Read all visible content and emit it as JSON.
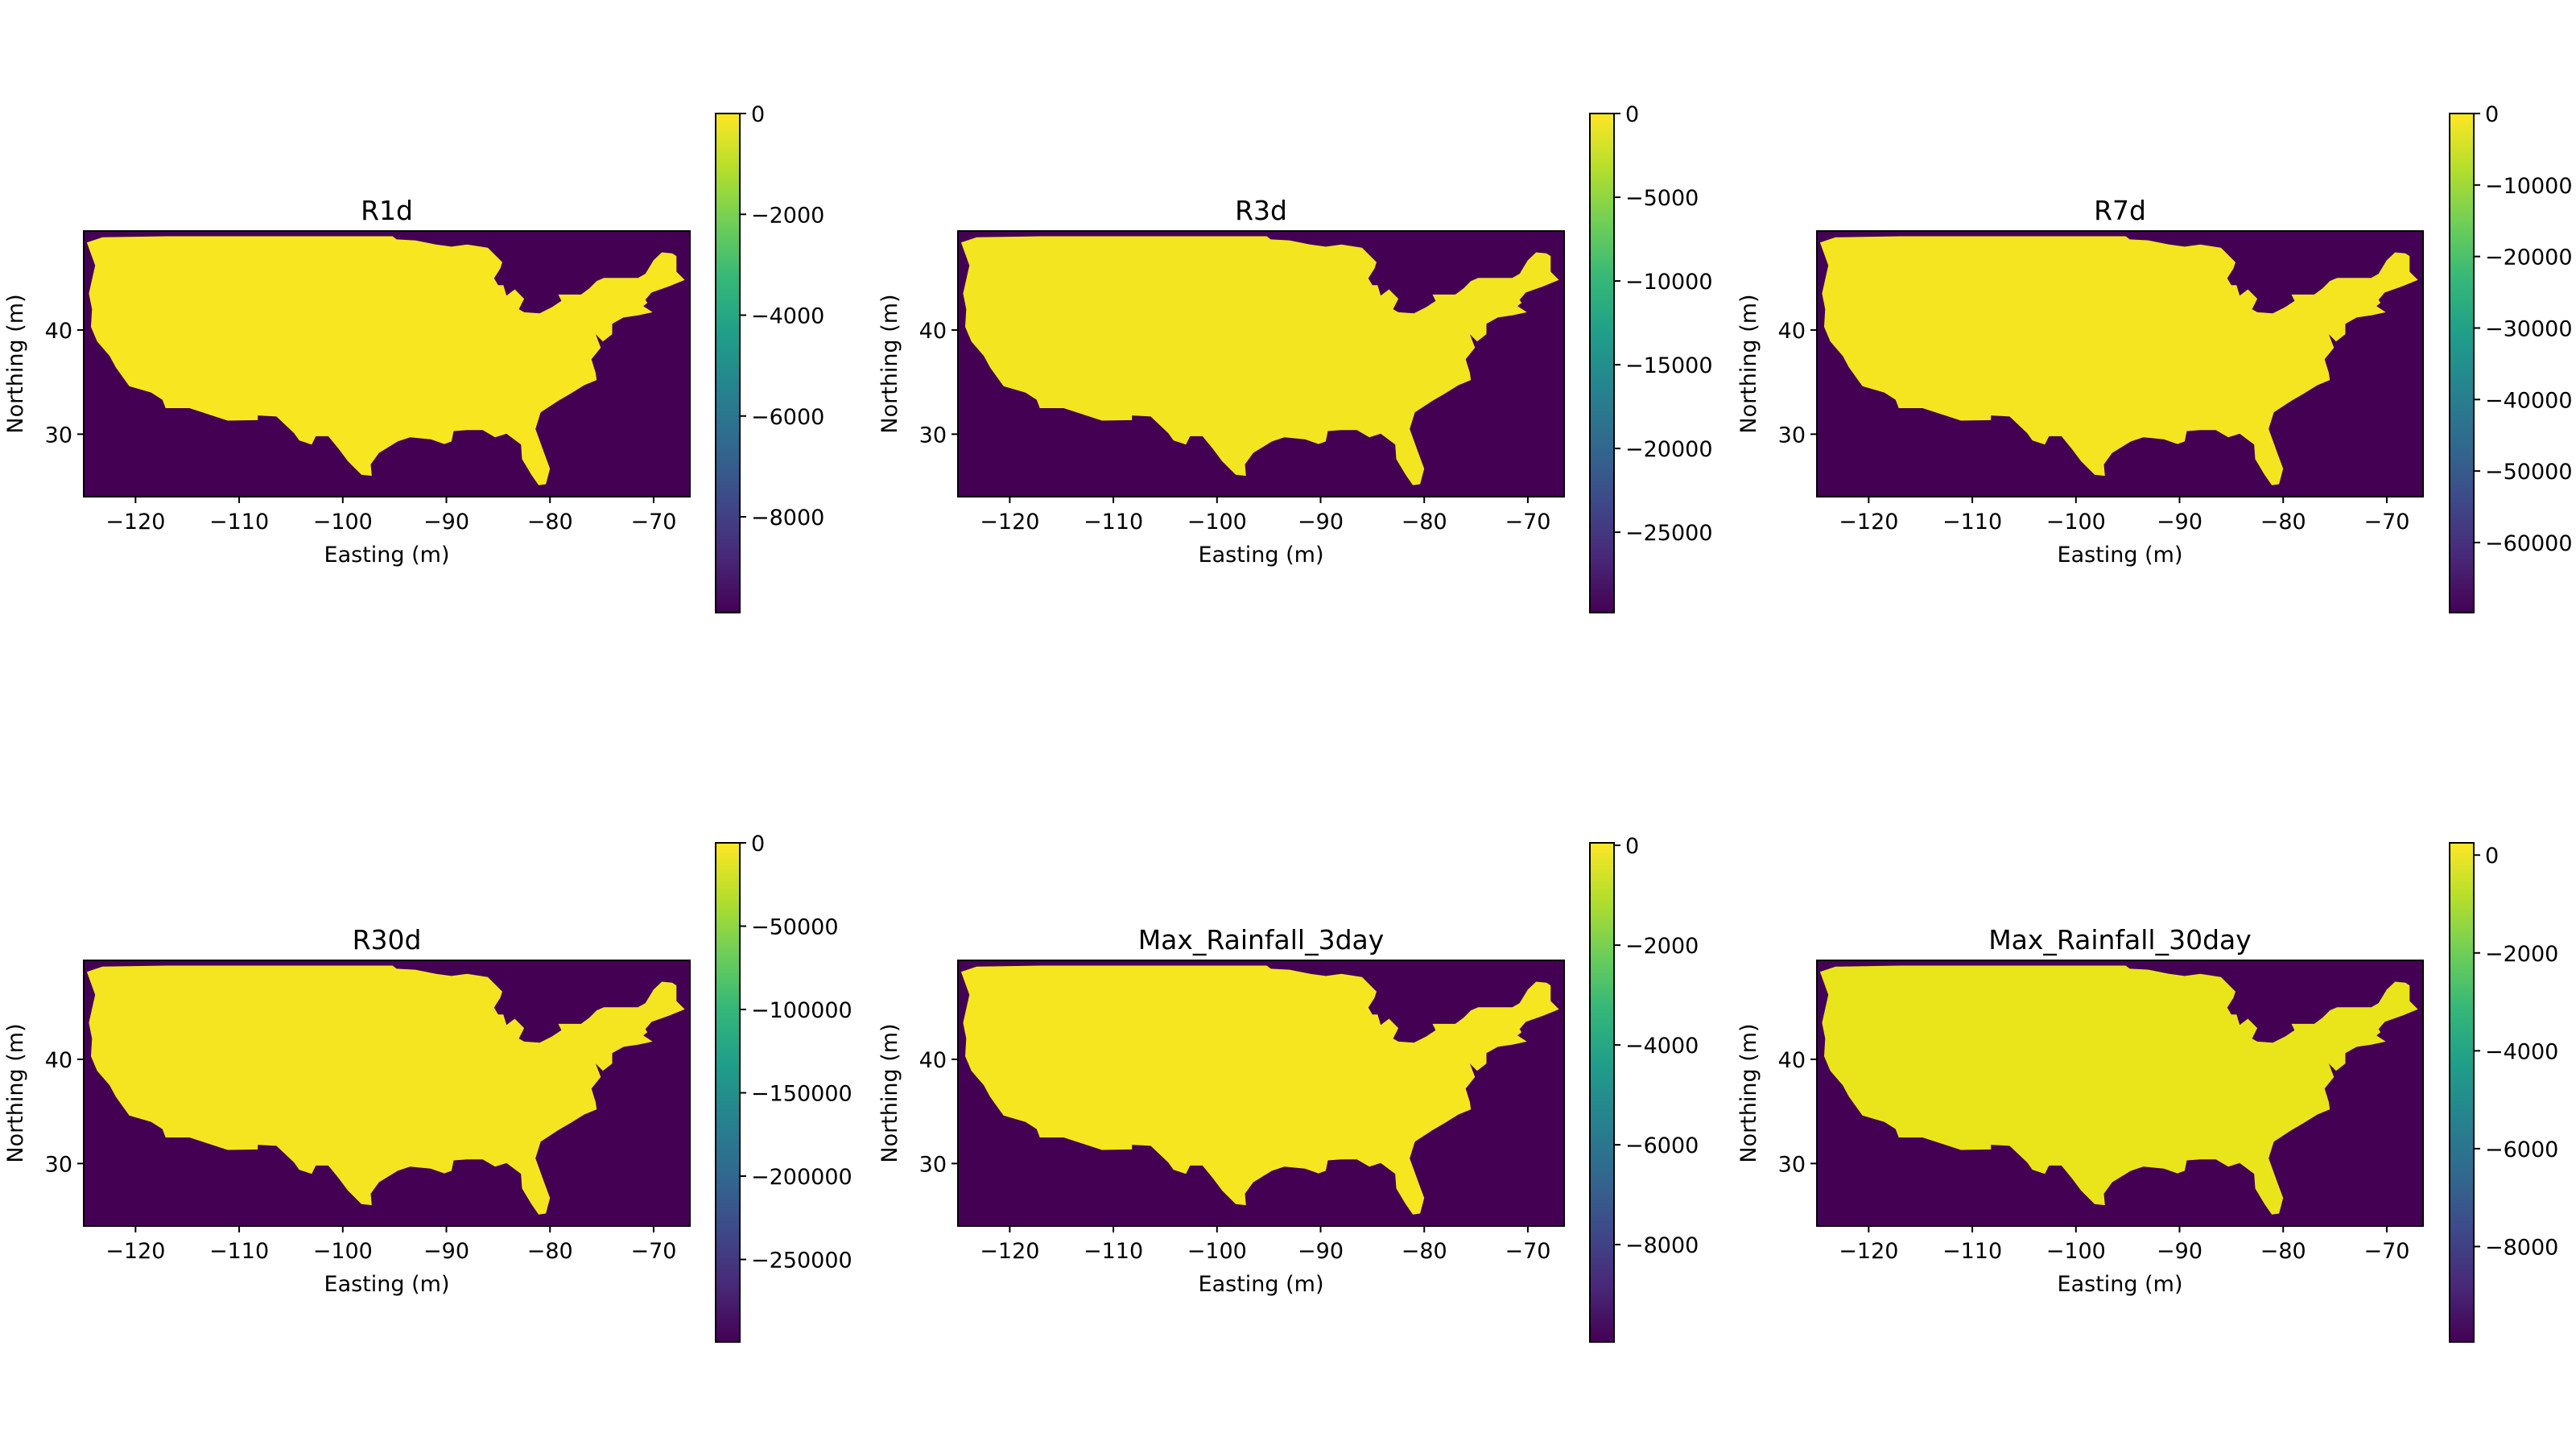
{
  "chart_data": [
    {
      "type": "heatmap",
      "title": "R1d",
      "xlabel": "Easting (m)",
      "ylabel": "Northing (m)",
      "x_ticks": [
        -120,
        -110,
        -100,
        -90,
        -80,
        -70
      ],
      "y_ticks": [
        30,
        40
      ],
      "xlim": [
        -125,
        -66.5
      ],
      "ylim": [
        24,
        49.5
      ],
      "colorbar": {
        "min": -9900,
        "max": 0,
        "ticks": [
          0,
          -2000,
          -4000,
          -6000,
          -8000
        ],
        "tick_labels": [
          "0",
          "−2000",
          "−4000",
          "−6000",
          "−8000"
        ]
      }
    },
    {
      "type": "heatmap",
      "title": "R3d",
      "xlabel": "Easting (m)",
      "ylabel": "Northing (m)",
      "x_ticks": [
        -120,
        -110,
        -100,
        -90,
        -80,
        -70
      ],
      "y_ticks": [
        30,
        40
      ],
      "xlim": [
        -125,
        -66.5
      ],
      "ylim": [
        24,
        49.5
      ],
      "colorbar": {
        "min": -29800,
        "max": 0,
        "ticks": [
          0,
          -5000,
          -10000,
          -15000,
          -20000,
          -25000
        ],
        "tick_labels": [
          "0",
          "−5000",
          "−10000",
          "−15000",
          "−20000",
          "−25000"
        ]
      }
    },
    {
      "type": "heatmap",
      "title": "R7d",
      "xlabel": "Easting (m)",
      "ylabel": "Northing (m)",
      "x_ticks": [
        -120,
        -110,
        -100,
        -90,
        -80,
        -70
      ],
      "y_ticks": [
        30,
        40
      ],
      "xlim": [
        -125,
        -66.5
      ],
      "ylim": [
        24,
        49.5
      ],
      "colorbar": {
        "min": -69800,
        "max": 0,
        "ticks": [
          0,
          -10000,
          -20000,
          -30000,
          -40000,
          -50000,
          -60000
        ],
        "tick_labels": [
          "0",
          "−10000",
          "−20000",
          "−30000",
          "−40000",
          "−50000",
          "−60000"
        ]
      }
    },
    {
      "type": "heatmap",
      "title": "R30d",
      "xlabel": "Easting (m)",
      "ylabel": "Northing (m)",
      "x_ticks": [
        -120,
        -110,
        -100,
        -90,
        -80,
        -70
      ],
      "y_ticks": [
        30,
        40
      ],
      "xlim": [
        -125,
        -66.5
      ],
      "ylim": [
        24,
        49.5
      ],
      "colorbar": {
        "min": -299500,
        "max": 0,
        "ticks": [
          0,
          -50000,
          -100000,
          -150000,
          -200000,
          -250000
        ],
        "tick_labels": [
          "0",
          "−50000",
          "−100000",
          "−150000",
          "−200000",
          "−250000"
        ]
      }
    },
    {
      "type": "heatmap",
      "title": "Max_Rainfall_3day",
      "xlabel": "Easting (m)",
      "ylabel": "Northing (m)",
      "x_ticks": [
        -120,
        -110,
        -100,
        -90,
        -80,
        -70
      ],
      "y_ticks": [
        30,
        40
      ],
      "xlim": [
        -125,
        -66.5
      ],
      "ylim": [
        24,
        49.5
      ],
      "colorbar": {
        "min": -9950,
        "max": 50,
        "ticks": [
          0,
          -2000,
          -4000,
          -6000,
          -8000
        ],
        "tick_labels": [
          "0",
          "−2000",
          "−4000",
          "−6000",
          "−8000"
        ]
      }
    },
    {
      "type": "heatmap",
      "title": "Max_Rainfall_30day",
      "xlabel": "Easting (m)",
      "ylabel": "Northing (m)",
      "x_ticks": [
        -120,
        -110,
        -100,
        -90,
        -80,
        -70
      ],
      "y_ticks": [
        30,
        40
      ],
      "xlim": [
        -125,
        -66.5
      ],
      "ylim": [
        24,
        49.5
      ],
      "colorbar": {
        "min": -9950,
        "max": 250,
        "ticks": [
          0,
          -2000,
          -4000,
          -6000,
          -8000
        ],
        "tick_labels": [
          "0",
          "−2000",
          "−4000",
          "−6000",
          "−8000"
        ]
      }
    }
  ],
  "colors": {
    "ocean": "#440154",
    "land": [
      "#f8e621",
      "#f3e520",
      "#f4e520",
      "#f5e521",
      "#f6e620",
      "#e9e51a"
    ]
  },
  "colormap": [
    "#440154",
    "#482878",
    "#3e4989",
    "#31688e",
    "#26828e",
    "#1f9e89",
    "#35b779",
    "#6ece58",
    "#b5de2b",
    "#fde725"
  ]
}
